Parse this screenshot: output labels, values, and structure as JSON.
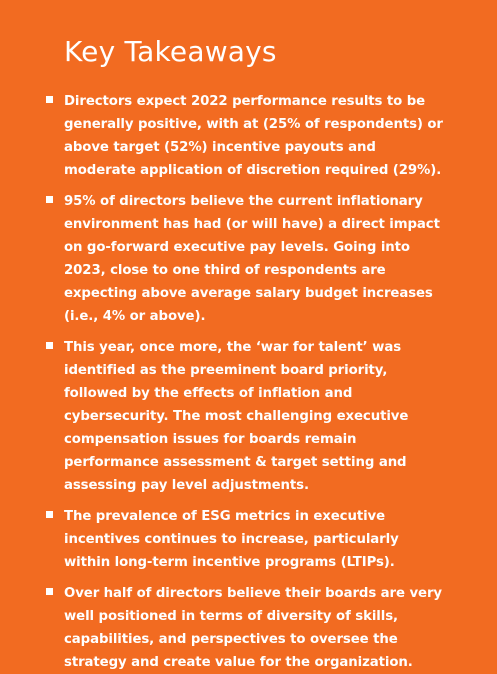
{
  "page": {
    "background_color": "#f26b21",
    "text_color": "#ffffff",
    "title": "Key Takeaways",
    "bullets": [
      {
        "icon": "square-bullet-icon",
        "text": "Directors expect 2022 performance results to be generally positive, with at (25% of respondents) or above target (52%) incentive payouts and moderate application of discretion required (29%)."
      },
      {
        "icon": "square-bullet-icon",
        "text": "95% of directors believe the current inflationary environment has had (or will have) a direct impact on go-forward executive pay levels. Going into 2023, close to one third of respondents are expecting above average salary budget increases (i.e., 4% or above)."
      },
      {
        "icon": "square-bullet-icon",
        "text": "This year, once more, the ‘war for talent’ was identified as the preeminent board priority, followed by the effects of inflation and cybersecurity. The most challenging executive compensation issues for boards remain performance assessment & target setting and assessing pay level adjustments."
      },
      {
        "icon": "square-bullet-icon",
        "text": "The prevalence of ESG metrics in executive incentives continues to increase, particularly within long-term incentive programs (LTIPs)."
      },
      {
        "icon": "square-bullet-icon",
        "text": "Over half of directors believe their boards are very well positioned in terms of diversity of skills, capabilities, and perspectives to oversee the strategy and create value for the organization."
      }
    ]
  }
}
